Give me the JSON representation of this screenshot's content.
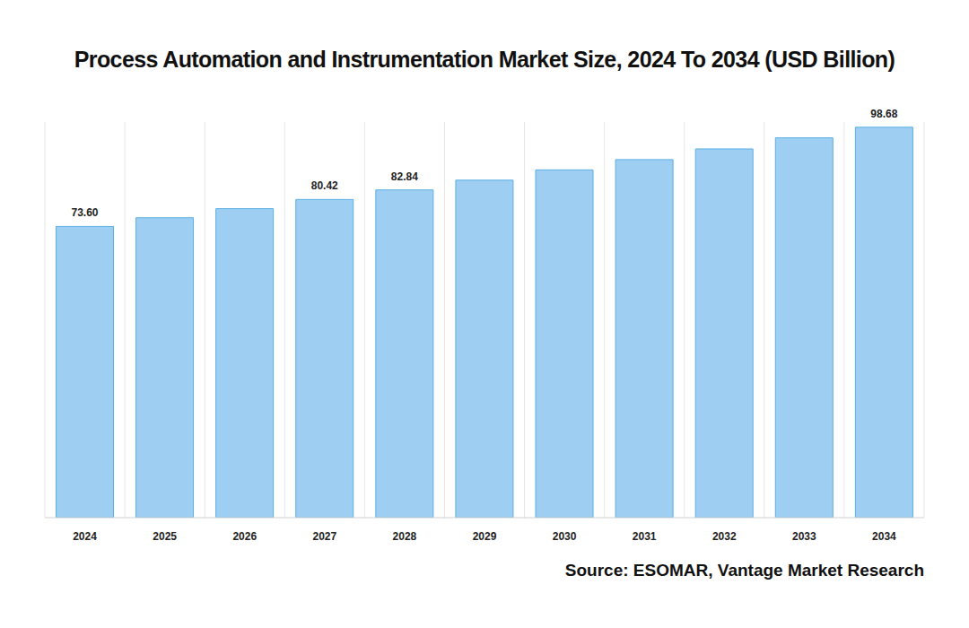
{
  "chart_data": {
    "type": "bar",
    "title": "Process Automation and Instrumentation Market Size, 2024 To 2034 (USD Billion)",
    "source": "Source: ESOMAR, Vantage Market Research",
    "categories": [
      "2024",
      "2025",
      "2026",
      "2027",
      "2028",
      "2029",
      "2030",
      "2031",
      "2032",
      "2033",
      "2034"
    ],
    "values": [
      73.6,
      75.8,
      78.1,
      80.42,
      82.84,
      85.3,
      87.9,
      90.5,
      93.2,
      96.0,
      98.68
    ],
    "value_labels": [
      "73.60",
      null,
      null,
      "80.42",
      "82.84",
      null,
      null,
      null,
      null,
      null,
      "98.68"
    ],
    "color": "#9ecff2",
    "ylim": [
      0,
      100
    ],
    "grid": true,
    "data_labels": true,
    "tick_labels": "x"
  }
}
